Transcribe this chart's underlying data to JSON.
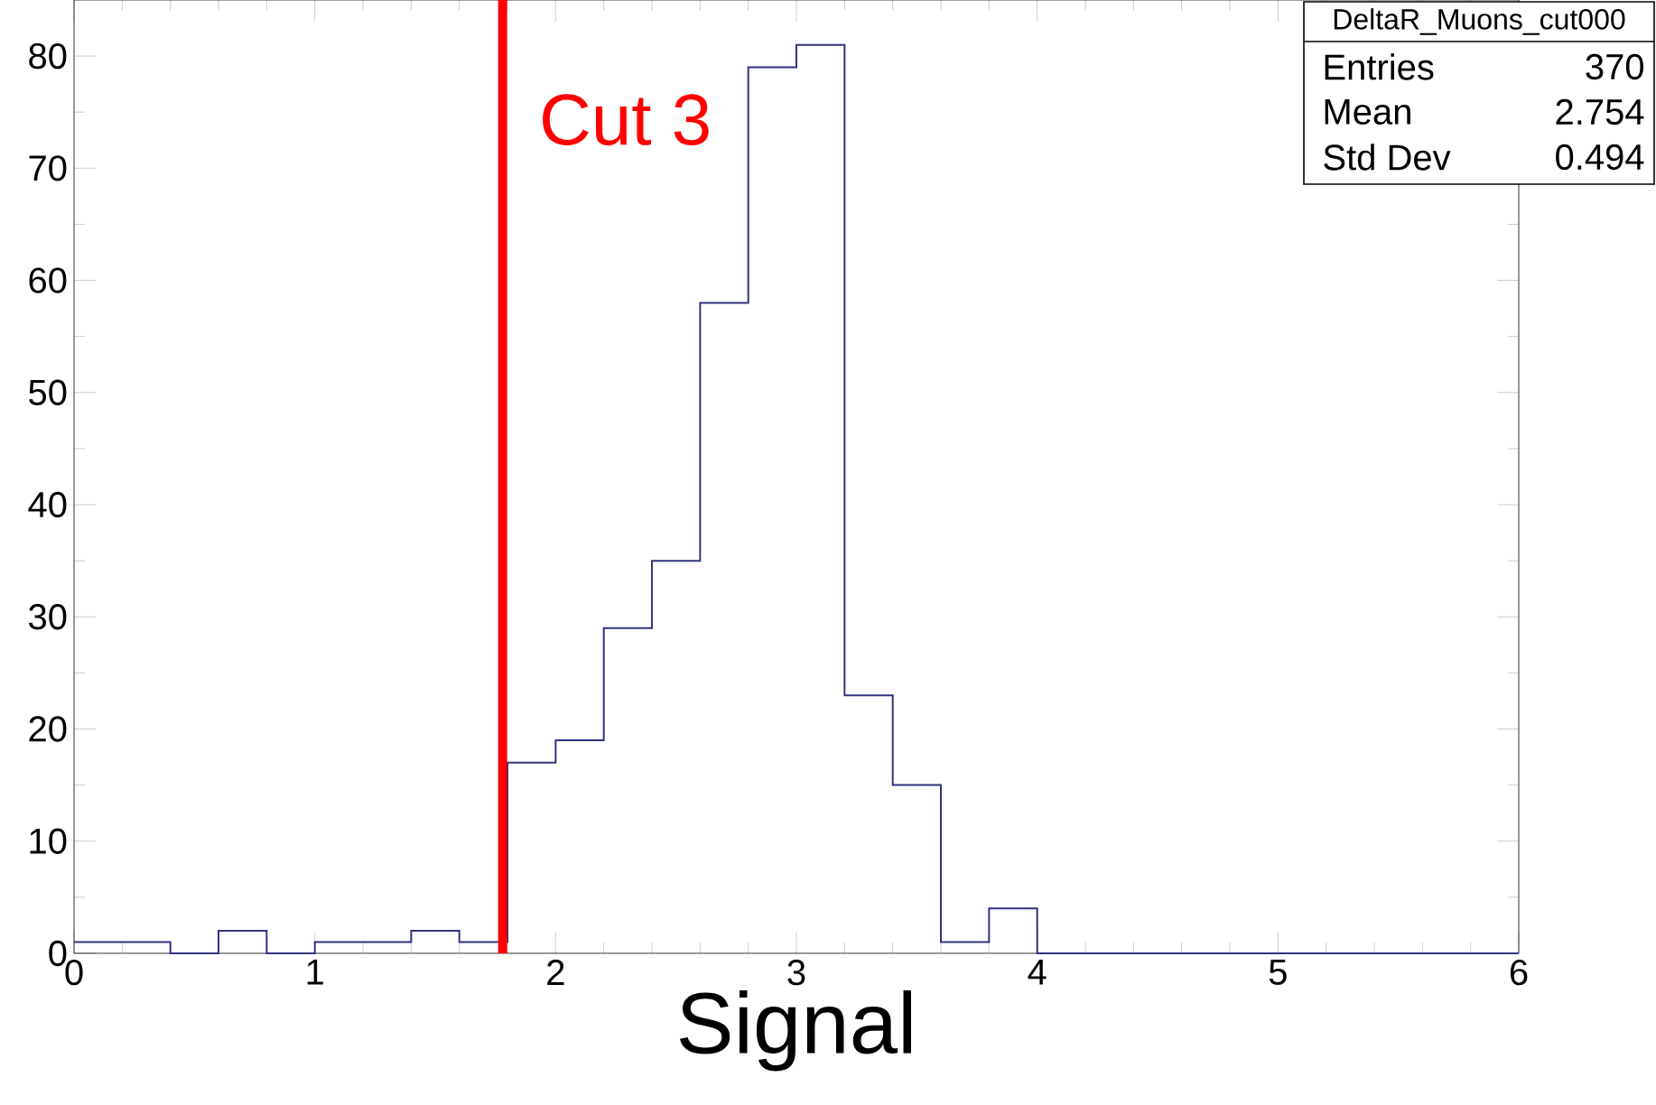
{
  "chart_data": {
    "type": "histogram",
    "xlabel": "Signal",
    "bins": [
      0,
      0.2,
      0.4,
      0.6,
      0.8,
      1.0,
      1.2,
      1.4,
      1.6,
      1.8,
      2.0,
      2.2,
      2.4,
      2.6,
      2.8,
      3.0,
      3.2,
      3.4,
      3.6,
      3.8,
      4.0,
      4.2,
      4.4,
      4.6,
      4.8,
      5.0,
      5.2,
      5.4,
      5.6,
      5.8,
      6.0
    ],
    "values": [
      1,
      1,
      0,
      2,
      0,
      1,
      1,
      2,
      1,
      17,
      19,
      29,
      35,
      58,
      79,
      81,
      23,
      15,
      1,
      4,
      0,
      0,
      0,
      0,
      0,
      0,
      0,
      0,
      0,
      0
    ],
    "color": "#33337f",
    "xlim": [
      0,
      6
    ],
    "ylim": [
      0,
      85
    ],
    "xticks": [
      0,
      1,
      2,
      3,
      4,
      5,
      6
    ],
    "yticks": [
      0,
      10,
      20,
      30,
      40,
      50,
      60,
      70,
      80
    ],
    "grid": false,
    "ref_lines": [
      {
        "axis": "x",
        "value": 1.78,
        "label": "Cut 3",
        "color": "#ff0000"
      }
    ],
    "annotations": [
      "DeltaR_Muons_cut000",
      "Entries",
      "370",
      "Mean",
      "2.754",
      "Std Dev",
      "0.494"
    ]
  }
}
